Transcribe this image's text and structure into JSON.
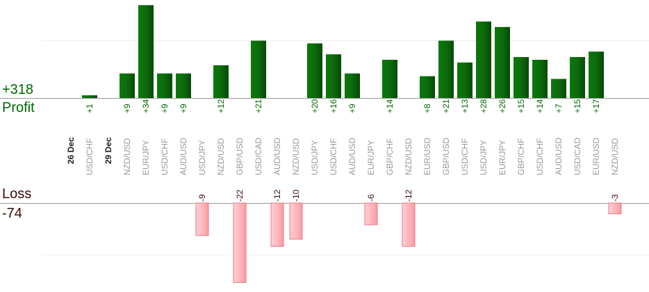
{
  "summary": {
    "profit_total": "+318",
    "profit_label": "Profit",
    "loss_label": "Loss",
    "loss_total": "-74"
  },
  "colors": {
    "profit_bar": "#0b6b0b",
    "profit_text": "#006600",
    "loss_bar": "#ffb3b8",
    "loss_border": "#e87a84",
    "loss_text": "#3a0a0a",
    "axis": "#999999",
    "grid": "#eeeeee",
    "date_label": "#222222",
    "pair_label": "#999999"
  },
  "chart_data": {
    "type": "bar",
    "profit_axis_ref": 21,
    "loss_axis_ref": 22,
    "dates": [
      {
        "label": "26 Dec",
        "slot": 0
      },
      {
        "label": "29 Dec",
        "slot": 2
      }
    ],
    "trades": [
      {
        "pair": "USD/CHF",
        "value": 1,
        "slot": 1
      },
      {
        "pair": "NZD/USD",
        "value": 9,
        "slot": 3
      },
      {
        "pair": "EUR/JPY",
        "value": 34,
        "slot": 4
      },
      {
        "pair": "USD/CHF",
        "value": 9,
        "slot": 5
      },
      {
        "pair": "AUD/USD",
        "value": 9,
        "slot": 6
      },
      {
        "pair": "USD/JPY",
        "value": -9,
        "slot": 7
      },
      {
        "pair": "NZD/USD",
        "value": 12,
        "slot": 8
      },
      {
        "pair": "GBP/USD",
        "value": -22,
        "slot": 9
      },
      {
        "pair": "USD/CAD",
        "value": 21,
        "slot": 10
      },
      {
        "pair": "AUD/USD",
        "value": -12,
        "slot": 11
      },
      {
        "pair": "NZD/USD",
        "value": -10,
        "slot": 12
      },
      {
        "pair": "USD/JPY",
        "value": 20,
        "slot": 13
      },
      {
        "pair": "USD/CHF",
        "value": 16,
        "slot": 14
      },
      {
        "pair": "AUD/USD",
        "value": 9,
        "slot": 15
      },
      {
        "pair": "EUR/JPY",
        "value": -6,
        "slot": 16
      },
      {
        "pair": "GBP/CHF",
        "value": 14,
        "slot": 17
      },
      {
        "pair": "NZD/USD",
        "value": -12,
        "slot": 18
      },
      {
        "pair": "EUR/USD",
        "value": 8,
        "slot": 19
      },
      {
        "pair": "GBP/USD",
        "value": 21,
        "slot": 20
      },
      {
        "pair": "USD/CHF",
        "value": 13,
        "slot": 21
      },
      {
        "pair": "USD/JPY",
        "value": 28,
        "slot": 22
      },
      {
        "pair": "EUR/JPY",
        "value": 26,
        "slot": 23
      },
      {
        "pair": "GBP/CHF",
        "value": 15,
        "slot": 24
      },
      {
        "pair": "USD/CHF",
        "value": 14,
        "slot": 25
      },
      {
        "pair": "AUD/USD",
        "value": 7,
        "slot": 26
      },
      {
        "pair": "USD/CAD",
        "value": 15,
        "slot": 27
      },
      {
        "pair": "EUR/USD",
        "value": 17,
        "slot": 28
      },
      {
        "pair": "NZD/USD",
        "value": -3,
        "slot": 29
      }
    ]
  }
}
